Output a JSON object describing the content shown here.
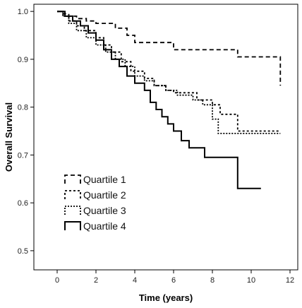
{
  "chart_data": {
    "type": "line",
    "step": true,
    "title": "",
    "xlabel": "Time (years)",
    "ylabel": "Overall Survival",
    "xlim": [
      -1.2,
      12.4
    ],
    "ylim": [
      0.46,
      1.015
    ],
    "xticks": [
      0,
      2,
      4,
      6,
      8,
      10,
      12
    ],
    "yticks": [
      0.5,
      0.6,
      0.7,
      0.8,
      0.9,
      1.0
    ],
    "ytick_labels": [
      "0.5",
      "0.6",
      "0.7",
      "0.8",
      "0.9",
      "1.0"
    ],
    "grid": false,
    "legend_position": "lower-left",
    "series": [
      {
        "name": "Quartile 1",
        "style": "dashed",
        "x": [
          0,
          0.3,
          0.6,
          1.0,
          1.5,
          2.0,
          3.0,
          3.6,
          4.0,
          6.0,
          9.3,
          11.5
        ],
        "y": [
          1.0,
          0.995,
          0.99,
          0.985,
          0.98,
          0.975,
          0.965,
          0.95,
          0.935,
          0.92,
          0.905,
          0.845
        ]
      },
      {
        "name": "Quartile 2",
        "style": "dotted",
        "x": [
          0,
          0.3,
          0.6,
          1.0,
          1.4,
          2.0,
          2.4,
          2.8,
          3.3,
          3.8,
          4.5,
          5.0,
          5.6,
          6.0,
          7.2,
          8.0,
          8.4,
          9.3,
          11.5
        ],
        "y": [
          1.0,
          0.99,
          0.98,
          0.97,
          0.96,
          0.945,
          0.93,
          0.915,
          0.895,
          0.875,
          0.86,
          0.845,
          0.835,
          0.83,
          0.815,
          0.805,
          0.785,
          0.75,
          0.75
        ]
      },
      {
        "name": "Quartile 3",
        "style": "dotted",
        "x": [
          0,
          0.3,
          0.6,
          1.0,
          1.5,
          2.0,
          2.5,
          3.0,
          3.5,
          4.0,
          4.5,
          5.0,
          5.6,
          6.2,
          7.0,
          7.5,
          8.0,
          8.3,
          11.5
        ],
        "y": [
          1.0,
          0.99,
          0.975,
          0.96,
          0.945,
          0.93,
          0.915,
          0.9,
          0.885,
          0.865,
          0.855,
          0.845,
          0.835,
          0.825,
          0.815,
          0.805,
          0.775,
          0.745,
          0.745
        ]
      },
      {
        "name": "Quartile 4",
        "style": "solid",
        "x": [
          0,
          0.4,
          0.8,
          1.2,
          1.6,
          2.0,
          2.4,
          2.8,
          3.2,
          3.6,
          4.0,
          4.5,
          4.8,
          5.1,
          5.4,
          5.7,
          6.0,
          6.4,
          6.8,
          7.6,
          9.3,
          10.5
        ],
        "y": [
          1.0,
          0.99,
          0.98,
          0.97,
          0.955,
          0.94,
          0.92,
          0.9,
          0.885,
          0.865,
          0.85,
          0.835,
          0.81,
          0.795,
          0.78,
          0.765,
          0.75,
          0.73,
          0.715,
          0.695,
          0.63,
          0.63
        ]
      }
    ]
  },
  "colors": {
    "background": "#ffffff",
    "axis": "#000000",
    "line": "#000000"
  }
}
